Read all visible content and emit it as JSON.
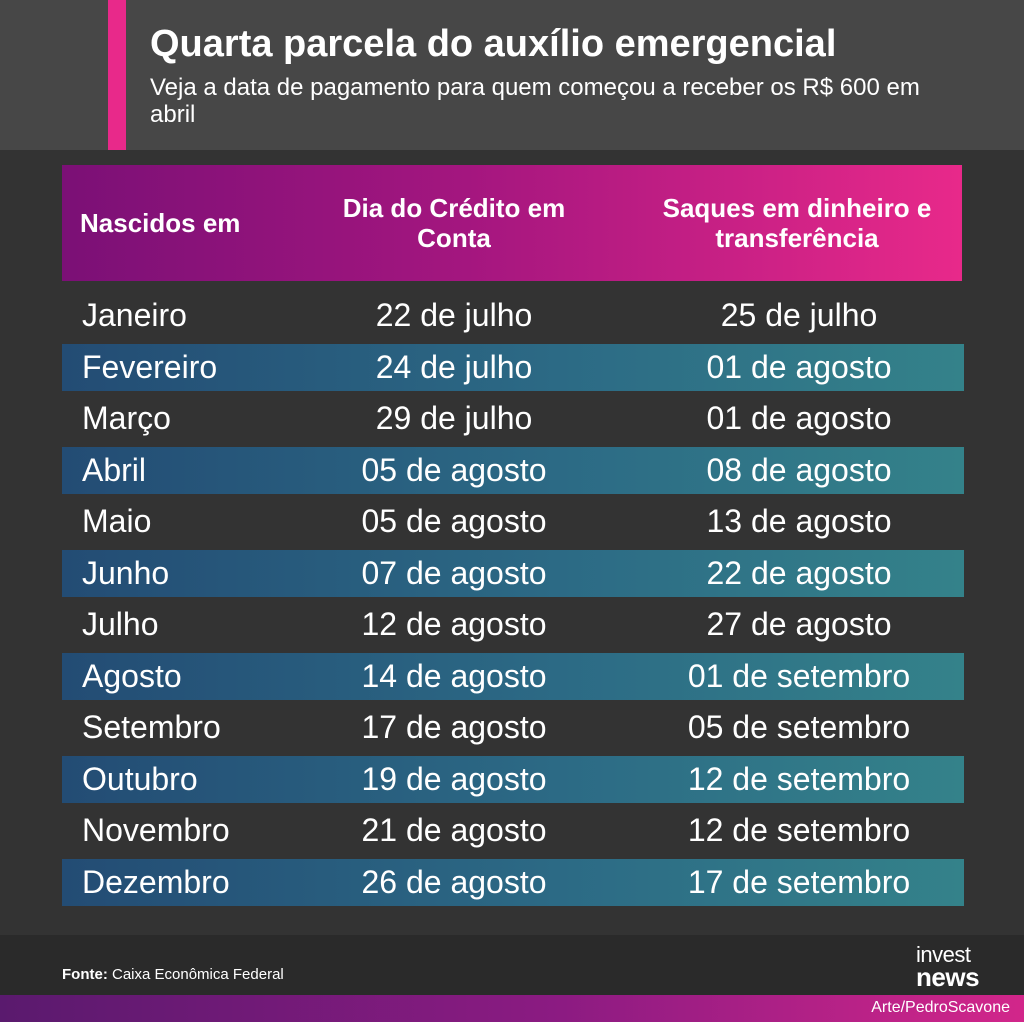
{
  "header": {
    "title": "Quarta parcela do auxílio emergencial",
    "subtitle": "Veja a data de pagamento para quem começou a receber os R$ 600 em abril"
  },
  "table": {
    "columns": [
      "Nascidos em",
      "Dia do Crédito em Conta",
      "Saques em dinheiro e transferência"
    ],
    "rows": [
      [
        "Janeiro",
        "22 de julho",
        "25 de julho"
      ],
      [
        "Fevereiro",
        "24 de julho",
        "01 de agosto"
      ],
      [
        "Março",
        "29 de julho",
        "01 de agosto"
      ],
      [
        "Abril",
        "05 de agosto",
        "08 de agosto"
      ],
      [
        "Maio",
        "05 de agosto",
        "13 de agosto"
      ],
      [
        "Junho",
        "07 de agosto",
        "22 de agosto"
      ],
      [
        "Julho",
        "12 de agosto",
        "27 de agosto"
      ],
      [
        "Agosto",
        "14 de agosto",
        "01 de setembro"
      ],
      [
        "Setembro",
        "17 de agosto",
        "05 de setembro"
      ],
      [
        "Outubro",
        "19 de agosto",
        "12 de setembro"
      ],
      [
        "Novembro",
        "21 de agosto",
        "12 de setembro"
      ],
      [
        "Dezembro",
        "26 de agosto",
        "17 de setembro"
      ]
    ]
  },
  "footer": {
    "source_label": "Fonte:",
    "source_text": "Caixa Econômica Federal",
    "logo_line1": "invest",
    "logo_line2": "news",
    "credit": "Arte/PedroScavone"
  },
  "colors": {
    "accent": "#e8298a",
    "header_gradient_start": "#7b1076",
    "row_stripe": "#2c6a85",
    "background": "#333333"
  }
}
